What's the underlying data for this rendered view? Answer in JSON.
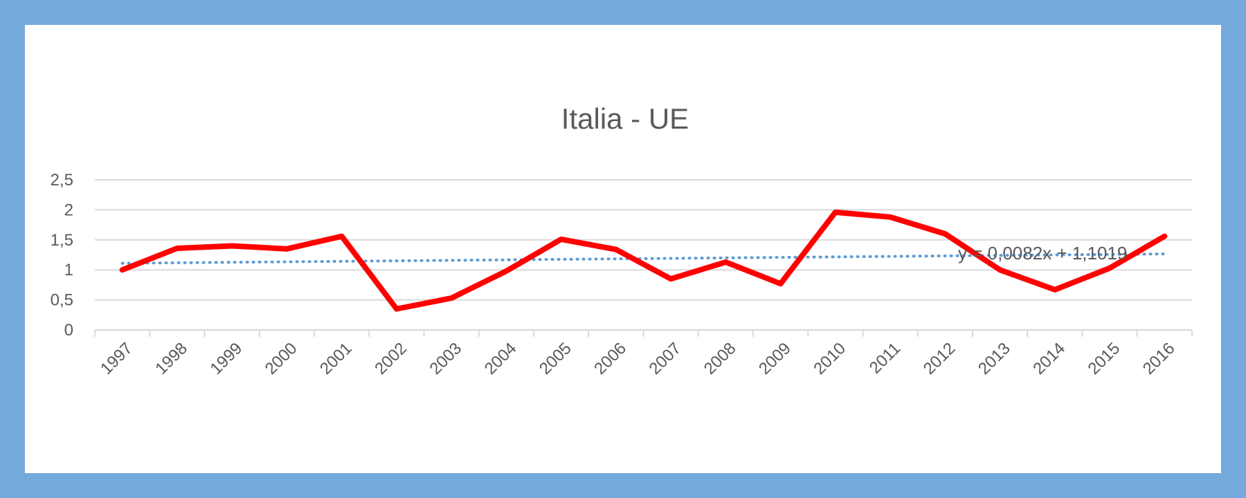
{
  "colors": {
    "background": "#74a9dc",
    "panel": "#ffffff",
    "series": "#ff0000",
    "trendline": "#5b9bd5",
    "grid": "#d9d9d9",
    "text": "#595959"
  },
  "chart_data": {
    "type": "line",
    "title": "Italia - UE",
    "xlabel": "",
    "ylabel": "",
    "categories": [
      "1997",
      "1998",
      "1999",
      "2000",
      "2001",
      "2002",
      "2003",
      "2004",
      "2005",
      "2006",
      "2007",
      "2008",
      "2009",
      "2010",
      "2011",
      "2012",
      "2013",
      "2014",
      "2015",
      "2016"
    ],
    "series": [
      {
        "values": [
          1.0,
          1.36,
          1.4,
          1.35,
          1.56,
          0.35,
          0.53,
          0.98,
          1.51,
          1.34,
          0.85,
          1.13,
          0.77,
          1.96,
          1.88,
          1.6,
          1.0,
          0.67,
          1.03,
          1.56
        ]
      }
    ],
    "trendline": {
      "type": "linear",
      "slope": 0.0082,
      "intercept": 1.1019,
      "equation": "y = 0,0082x + 1,1019"
    },
    "y_ticks": [
      "0",
      "0,5",
      "1",
      "1,5",
      "2",
      "2,5"
    ],
    "y_tick_values": [
      0,
      0.5,
      1,
      1.5,
      2,
      2.5
    ],
    "ylim": [
      0,
      2.5
    ],
    "grid": true,
    "legend": "none"
  }
}
